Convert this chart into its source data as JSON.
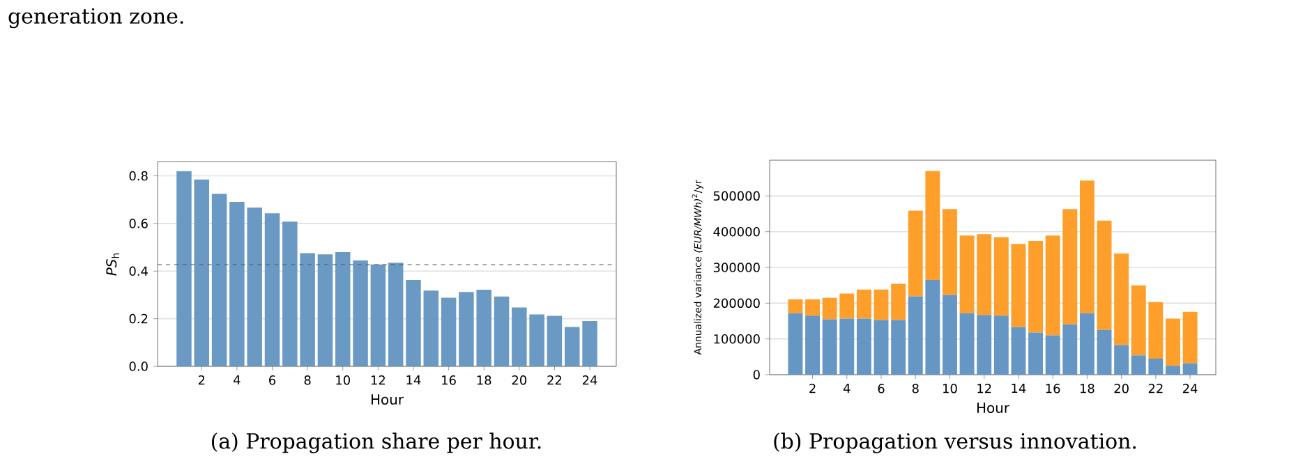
{
  "chart_data": [
    {
      "type": "bar",
      "xlabel": "Hour",
      "ylabel": "*PS*$_{h}$",
      "color": "#6a9ac4",
      "x": [
        1,
        2,
        3,
        4,
        5,
        6,
        7,
        8,
        9,
        10,
        11,
        12,
        13,
        14,
        15,
        16,
        17,
        18,
        19,
        20,
        21,
        22,
        23,
        24
      ],
      "values": [
        0.82,
        0.785,
        0.725,
        0.69,
        0.667,
        0.643,
        0.608,
        0.475,
        0.47,
        0.48,
        0.445,
        0.428,
        0.435,
        0.363,
        0.318,
        0.288,
        0.312,
        0.322,
        0.293,
        0.247,
        0.218,
        0.212,
        0.165,
        0.19
      ],
      "xlim": [
        -0.5,
        25.5
      ],
      "ylim": [
        0,
        0.86
      ],
      "xticks": [
        2,
        4,
        6,
        8,
        10,
        12,
        14,
        16,
        18,
        20,
        22,
        24
      ],
      "yticks": [
        {
          "value": 0,
          "label": "0.0"
        },
        {
          "value": 0.2,
          "label": "0.2"
        },
        {
          "value": 0.4,
          "label": "0.4"
        },
        {
          "value": 0.6,
          "label": "0.6"
        },
        {
          "value": 0.8,
          "label": "0.8"
        }
      ],
      "grid": "y",
      "ref_lines": [
        {
          "axis": "y",
          "value": 0.427,
          "color": "#555555",
          "line_style": "dashed"
        }
      ],
      "annotations": [
        "generation zone.",
        "(a) Propagation share per hour."
      ]
    },
    {
      "type": "bar",
      "stacked": true,
      "xlabel": "Hour",
      "ylabel": "Annualized variance  *(EUR/MWh)*$^{2}$/yr",
      "x": [
        1,
        2,
        3,
        4,
        5,
        6,
        7,
        8,
        9,
        10,
        11,
        12,
        13,
        14,
        15,
        16,
        17,
        18,
        19,
        20,
        21,
        22,
        23,
        24
      ],
      "series": [
        {
          "color": "#6596c4",
          "values": [
            172000,
            165000,
            155000,
            157000,
            157000,
            153000,
            153000,
            219000,
            265000,
            223000,
            172000,
            167000,
            165000,
            133000,
            118000,
            110000,
            141000,
            172000,
            125000,
            83000,
            54000,
            45000,
            25000,
            32000
          ]
        },
        {
          "color": "#ff9f2b",
          "values": [
            39000,
            46000,
            60000,
            70000,
            81000,
            85000,
            101000,
            240000,
            305000,
            240000,
            217000,
            226000,
            220000,
            233000,
            256000,
            279000,
            322000,
            371000,
            306000,
            256000,
            196000,
            158000,
            132000,
            144000
          ]
        }
      ],
      "xlim": [
        -0.5,
        25.5
      ],
      "ylim": [
        0,
        600000
      ],
      "xticks": [
        2,
        4,
        6,
        8,
        10,
        12,
        14,
        16,
        18,
        20,
        22,
        24
      ],
      "yticks": [
        0,
        100000,
        200000,
        300000,
        400000,
        500000
      ],
      "grid": "y",
      "annotations": [
        "(b) Propagation versus innovation."
      ]
    }
  ]
}
